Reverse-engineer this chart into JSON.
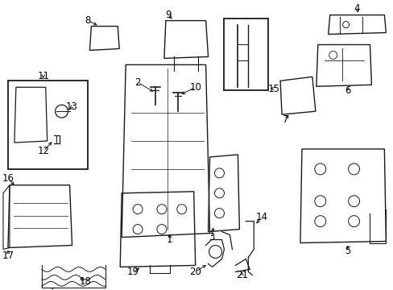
{
  "background_color": "#ffffff",
  "line_color": "#1a1a1a",
  "text_color": "#000000",
  "font_size": 8.5,
  "arrow_lw": 0.7,
  "part_lw": 1.0,
  "labels": [
    1,
    2,
    3,
    4,
    5,
    6,
    7,
    8,
    9,
    10,
    11,
    12,
    13,
    14,
    15,
    16,
    17,
    18,
    19,
    20,
    21
  ]
}
